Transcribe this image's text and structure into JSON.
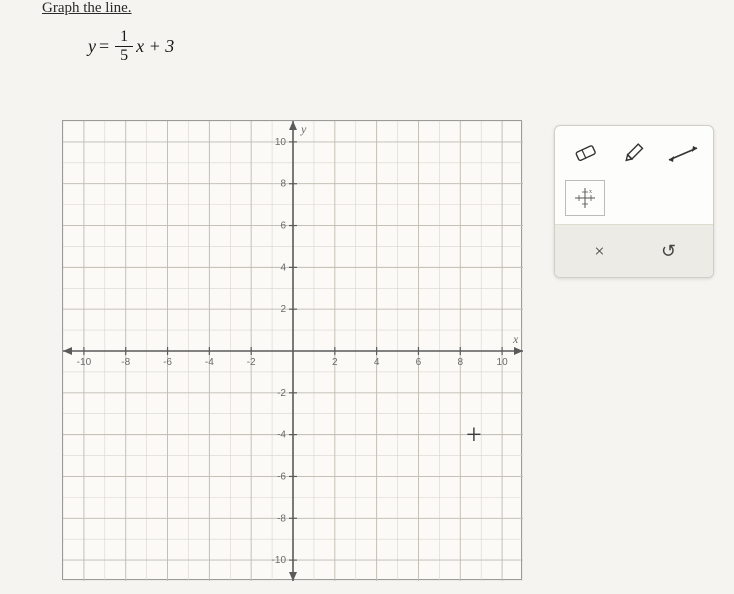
{
  "instruction": "Graph the line.",
  "equation": {
    "lhs": "y",
    "equals": "=",
    "frac_num": "1",
    "frac_den": "5",
    "rhs": "x + 3"
  },
  "graph": {
    "type": "cartesian-grid",
    "xlim": [
      -11,
      11
    ],
    "ylim": [
      -11,
      11
    ],
    "xtick_step": 2,
    "ytick_step": 2,
    "xlabels": [
      "-10",
      "-8",
      "-6",
      "-4",
      "-2",
      "2",
      "4",
      "6",
      "8",
      "10"
    ],
    "ylabels": [
      "-10",
      "-8",
      "-6",
      "-4",
      "-2",
      "2",
      "4",
      "6",
      "8",
      "10"
    ],
    "axis_labels": {
      "x": "x",
      "y": "y"
    },
    "background_color": "#fbfaf6",
    "minor_grid_color": "#d8d6cc",
    "major_grid_color": "#bfbdb2",
    "axis_color": "#5a5a5a",
    "tick_label_color": "#6a6a6a",
    "tick_label_fontsize": 10
  },
  "toolbox": {
    "tools": [
      {
        "name": "eraser"
      },
      {
        "name": "pencil"
      },
      {
        "name": "line"
      },
      {
        "name": "point-grid"
      }
    ],
    "actions": {
      "clear_label": "×",
      "undo_label": "↺"
    }
  }
}
